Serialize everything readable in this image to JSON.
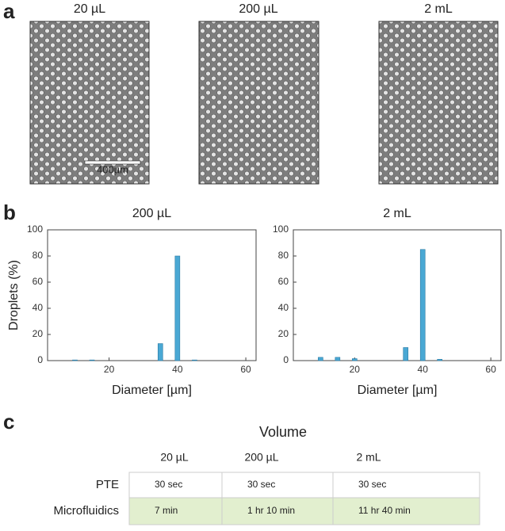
{
  "panel_labels": [
    "a",
    "b",
    "c"
  ],
  "images": [
    {
      "title": "20 µL"
    },
    {
      "title": "200 µL"
    },
    {
      "title": "2 mL"
    }
  ],
  "scale_bar": "400µm",
  "chart_data": [
    {
      "type": "bar",
      "title": "200 µL",
      "x": [
        10,
        15,
        35,
        40,
        45
      ],
      "values": [
        0.5,
        0.5,
        13,
        80,
        0.5
      ],
      "xlim": [
        2,
        63
      ],
      "xticks": [
        20,
        40,
        60
      ],
      "ylim": [
        0,
        100
      ],
      "yticks": [
        0,
        20,
        40,
        60,
        80,
        100
      ],
      "xlabel": "Diameter [µm]",
      "ylabel": "Droplets (%)",
      "color": "#4aa8d4"
    },
    {
      "type": "bar",
      "title": "2 mL",
      "x": [
        10,
        15,
        20,
        35,
        40,
        45
      ],
      "values": [
        2.5,
        2.5,
        1.5,
        10,
        85,
        1
      ],
      "xlim": [
        2,
        63
      ],
      "xticks": [
        20,
        40,
        60
      ],
      "ylim": [
        0,
        100
      ],
      "yticks": [
        0,
        20,
        40,
        60,
        80,
        100
      ],
      "xlabel": "Diameter [µm]",
      "color": "#4aa8d4"
    }
  ],
  "table": {
    "title": "Volume",
    "columns": [
      "20 µL",
      "200 µL",
      "2 mL"
    ],
    "rows": [
      {
        "label": "PTE",
        "cells": [
          "30 sec",
          "30 sec",
          "30 sec"
        ]
      },
      {
        "label": "Microfluidics",
        "cells": [
          "7 min",
          "1 hr 10 min",
          "11 hr 40 min"
        ]
      }
    ]
  }
}
